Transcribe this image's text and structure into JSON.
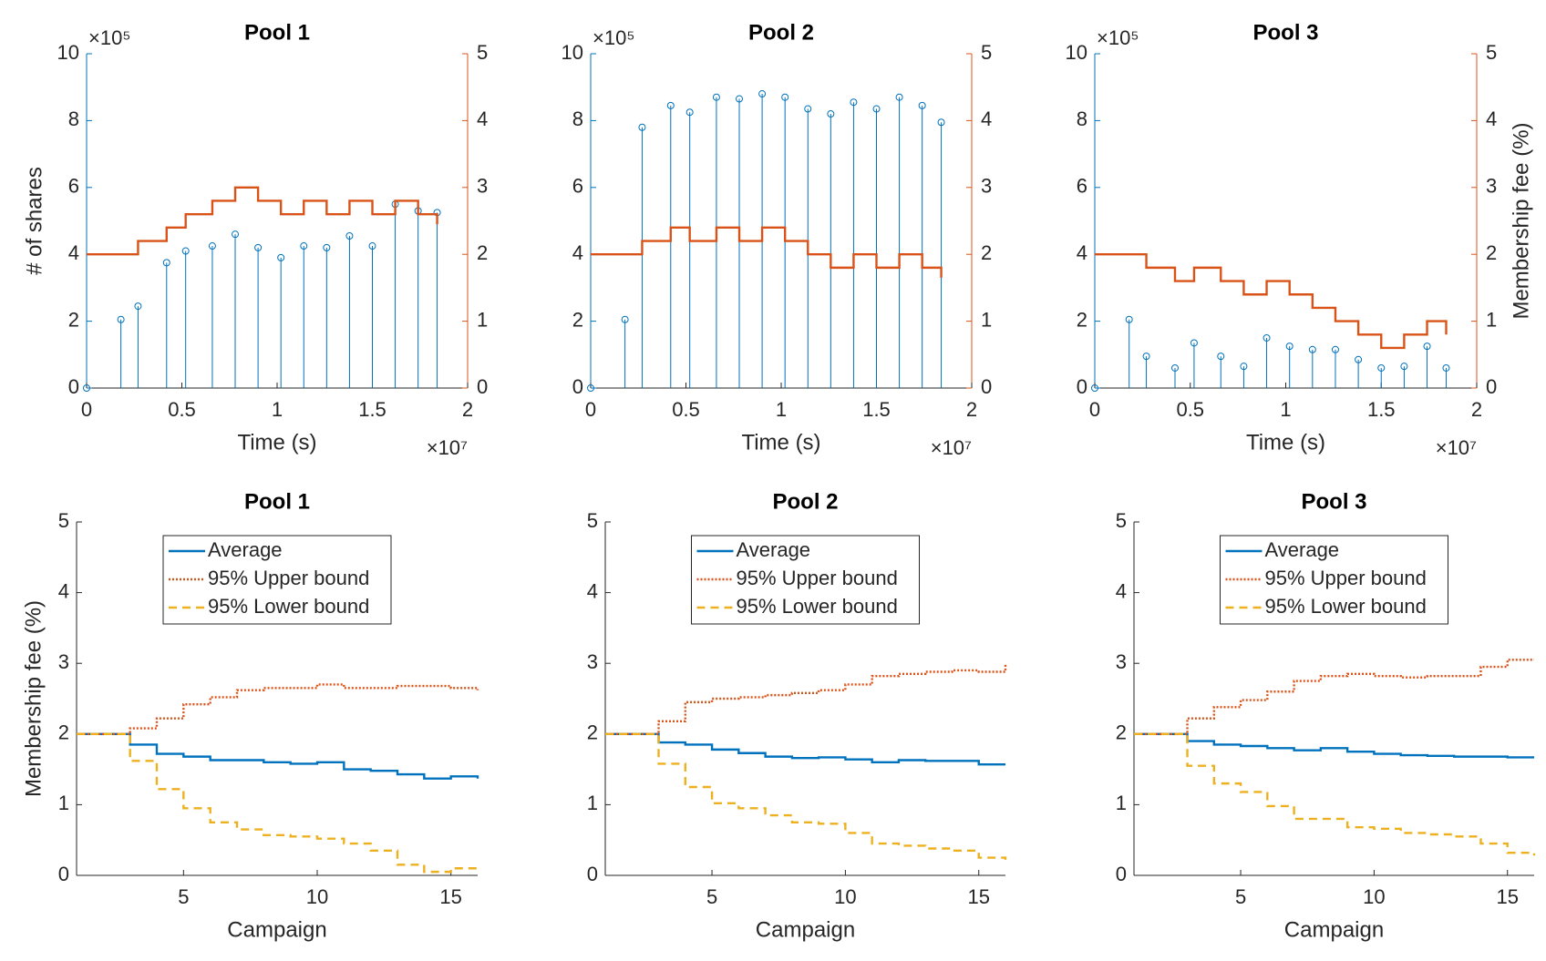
{
  "chart_data": [
    {
      "type": "stem",
      "title": "Pool 1",
      "xlabel": "Time (s)",
      "ylabel": "# of shares",
      "x_exponent": "×10⁷",
      "y_exponent": "×10⁵",
      "x": [
        0,
        0.18,
        0.27,
        0.42,
        0.52,
        0.66,
        0.78,
        0.9,
        1.02,
        1.14,
        1.26,
        1.38,
        1.5,
        1.62,
        1.74,
        1.84
      ],
      "xlim": [
        0,
        2
      ],
      "xticks": [
        0,
        0.5,
        1,
        1.5,
        2
      ],
      "ylim": [
        0,
        10
      ],
      "yticks": [
        0,
        2,
        4,
        6,
        8,
        10
      ],
      "y2lim": [
        0,
        5
      ],
      "y2ticks": [
        0,
        1,
        2,
        3,
        4,
        5
      ],
      "series": [
        {
          "color": "#0072BD",
          "style": "stem",
          "values": [
            0,
            2.05,
            2.45,
            3.75,
            4.1,
            4.25,
            4.6,
            4.2,
            3.9,
            4.25,
            4.2,
            4.55,
            4.25,
            5.5,
            5.3,
            5.25
          ]
        },
        {
          "color": "#D95319",
          "style": "stairs",
          "axis": "y2",
          "values": [
            2,
            2,
            2.2,
            2.4,
            2.6,
            2.8,
            3.0,
            2.8,
            2.6,
            2.8,
            2.6,
            2.8,
            2.6,
            2.8,
            2.6,
            2.45
          ]
        }
      ]
    },
    {
      "type": "stem",
      "title": "Pool 2",
      "xlabel": "Time (s)",
      "x_exponent": "×10⁷",
      "y_exponent": "×10⁵",
      "x": [
        0,
        0.18,
        0.27,
        0.42,
        0.52,
        0.66,
        0.78,
        0.9,
        1.02,
        1.14,
        1.26,
        1.38,
        1.5,
        1.62,
        1.74,
        1.84
      ],
      "xlim": [
        0,
        2
      ],
      "xticks": [
        0,
        0.5,
        1,
        1.5,
        2
      ],
      "ylim": [
        0,
        10
      ],
      "yticks": [
        0,
        2,
        4,
        6,
        8,
        10
      ],
      "y2lim": [
        0,
        5
      ],
      "y2ticks": [
        0,
        1,
        2,
        3,
        4,
        5
      ],
      "series": [
        {
          "color": "#0072BD",
          "style": "stem",
          "values": [
            0,
            2.05,
            7.8,
            8.45,
            8.25,
            8.7,
            8.65,
            8.8,
            8.7,
            8.35,
            8.2,
            8.55,
            8.35,
            8.7,
            8.45,
            7.95
          ]
        },
        {
          "color": "#D95319",
          "style": "stairs",
          "axis": "y2",
          "values": [
            2,
            2,
            2.2,
            2.4,
            2.2,
            2.4,
            2.2,
            2.4,
            2.2,
            2.0,
            1.8,
            2.0,
            1.8,
            2.0,
            1.8,
            1.65
          ]
        }
      ]
    },
    {
      "type": "stem",
      "title": "Pool 3",
      "xlabel": "Time (s)",
      "y2label": "Membership fee (%)",
      "x_exponent": "×10⁷",
      "y_exponent": "×10⁵",
      "x": [
        0,
        0.18,
        0.27,
        0.42,
        0.52,
        0.66,
        0.78,
        0.9,
        1.02,
        1.14,
        1.26,
        1.38,
        1.5,
        1.62,
        1.74,
        1.84
      ],
      "xlim": [
        0,
        2
      ],
      "xticks": [
        0,
        0.5,
        1,
        1.5,
        2
      ],
      "ylim": [
        0,
        10
      ],
      "yticks": [
        0,
        2,
        4,
        6,
        8,
        10
      ],
      "y2lim": [
        0,
        5
      ],
      "y2ticks": [
        0,
        1,
        2,
        3,
        4,
        5
      ],
      "series": [
        {
          "color": "#0072BD",
          "style": "stem",
          "values": [
            0,
            2.05,
            0.95,
            0.6,
            1.35,
            0.95,
            0.65,
            1.5,
            1.25,
            1.15,
            1.15,
            0.85,
            0.6,
            0.65,
            1.25,
            0.6
          ]
        },
        {
          "color": "#D95319",
          "style": "stairs",
          "axis": "y2",
          "values": [
            2,
            2,
            1.8,
            1.6,
            1.8,
            1.6,
            1.4,
            1.6,
            1.4,
            1.2,
            1.0,
            0.8,
            0.6,
            0.8,
            1.0,
            0.8
          ]
        }
      ]
    },
    {
      "type": "stairs",
      "title": "Pool 1",
      "xlabel": "Campaign",
      "ylabel": "Membership fee (%)",
      "legend": "north",
      "x": [
        1,
        2,
        3,
        4,
        5,
        6,
        7,
        8,
        9,
        10,
        11,
        12,
        13,
        14,
        15,
        16
      ],
      "xlim": [
        1,
        16
      ],
      "xticks": [
        5,
        10,
        15
      ],
      "ylim": [
        0,
        5
      ],
      "yticks": [
        0,
        1,
        2,
        3,
        4,
        5
      ],
      "series": [
        {
          "name": "Average",
          "color": "#0072BD",
          "line_style": "solid",
          "values": [
            2,
            2,
            1.85,
            1.72,
            1.68,
            1.63,
            1.63,
            1.6,
            1.58,
            1.6,
            1.5,
            1.48,
            1.43,
            1.37,
            1.4,
            1.37
          ]
        },
        {
          "name": "95% Upper bound",
          "color": "#D95319",
          "line_style": "dotted",
          "values": [
            2,
            2,
            2.08,
            2.22,
            2.42,
            2.52,
            2.62,
            2.65,
            2.65,
            2.7,
            2.65,
            2.65,
            2.68,
            2.68,
            2.65,
            2.62
          ]
        },
        {
          "name": "95% Lower bound",
          "color": "#EDB120",
          "line_style": "dashed",
          "values": [
            2,
            2,
            1.62,
            1.22,
            0.95,
            0.75,
            0.65,
            0.57,
            0.55,
            0.52,
            0.45,
            0.35,
            0.15,
            0.05,
            0.1,
            0.12
          ]
        }
      ]
    },
    {
      "type": "stairs",
      "title": "Pool 2",
      "xlabel": "Campaign",
      "legend": "north",
      "x": [
        1,
        2,
        3,
        4,
        5,
        6,
        7,
        8,
        9,
        10,
        11,
        12,
        13,
        14,
        15,
        16
      ],
      "xlim": [
        1,
        16
      ],
      "xticks": [
        5,
        10,
        15
      ],
      "ylim": [
        0,
        5
      ],
      "yticks": [
        0,
        1,
        2,
        3,
        4,
        5
      ],
      "series": [
        {
          "name": "Average",
          "color": "#0072BD",
          "line_style": "solid",
          "values": [
            2,
            2,
            1.88,
            1.85,
            1.78,
            1.73,
            1.68,
            1.66,
            1.67,
            1.64,
            1.6,
            1.63,
            1.62,
            1.62,
            1.57,
            1.57
          ]
        },
        {
          "name": "95% Upper bound",
          "color": "#D95319",
          "line_style": "dotted",
          "values": [
            2,
            2,
            2.18,
            2.45,
            2.5,
            2.52,
            2.55,
            2.58,
            2.62,
            2.7,
            2.82,
            2.85,
            2.88,
            2.9,
            2.88,
            3.0
          ]
        },
        {
          "name": "95% Lower bound",
          "color": "#EDB120",
          "line_style": "dashed",
          "values": [
            2,
            2,
            1.58,
            1.25,
            1.02,
            0.95,
            0.85,
            0.75,
            0.73,
            0.6,
            0.45,
            0.42,
            0.38,
            0.35,
            0.25,
            0.22
          ]
        }
      ]
    },
    {
      "type": "stairs",
      "title": "Pool 3",
      "xlabel": "Campaign",
      "legend": "north",
      "x": [
        1,
        2,
        3,
        4,
        5,
        6,
        7,
        8,
        9,
        10,
        11,
        12,
        13,
        14,
        15,
        16
      ],
      "xlim": [
        1,
        16
      ],
      "xticks": [
        5,
        10,
        15
      ],
      "ylim": [
        0,
        5
      ],
      "yticks": [
        0,
        1,
        2,
        3,
        4,
        5
      ],
      "series": [
        {
          "name": "Average",
          "color": "#0072BD",
          "line_style": "solid",
          "values": [
            2,
            2,
            1.9,
            1.85,
            1.83,
            1.8,
            1.77,
            1.8,
            1.75,
            1.72,
            1.7,
            1.69,
            1.68,
            1.68,
            1.67,
            1.67
          ]
        },
        {
          "name": "95% Upper bound",
          "color": "#D95319",
          "line_style": "dotted",
          "values": [
            2,
            2,
            2.22,
            2.38,
            2.48,
            2.6,
            2.75,
            2.82,
            2.85,
            2.82,
            2.8,
            2.82,
            2.82,
            2.95,
            3.05,
            3.05
          ]
        },
        {
          "name": "95% Lower bound",
          "color": "#EDB120",
          "line_style": "dashed",
          "values": [
            2,
            2,
            1.55,
            1.3,
            1.18,
            0.98,
            0.8,
            0.8,
            0.68,
            0.66,
            0.6,
            0.58,
            0.55,
            0.45,
            0.32,
            0.28
          ]
        }
      ]
    }
  ]
}
